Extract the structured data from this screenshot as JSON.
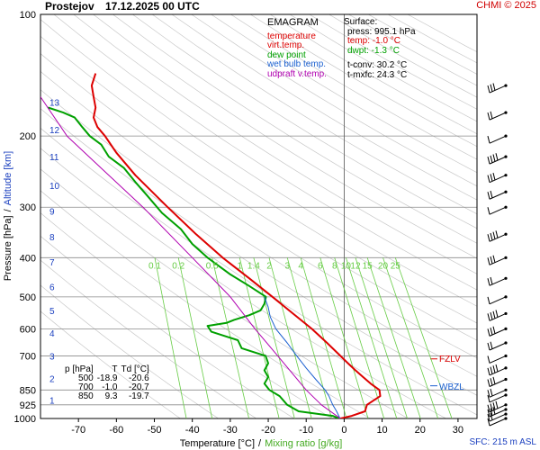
{
  "header": {
    "station": "Prostejov",
    "datetime": "17.12.2025 00 UTC",
    "copyright": "CHMI © 2025"
  },
  "legend": {
    "title": "EMAGRAM",
    "items": [
      {
        "label": "temperature",
        "color": "#dd0000"
      },
      {
        "label": "virt.temp.",
        "color": "#dd0000"
      },
      {
        "label": "dew point",
        "color": "#00a000"
      },
      {
        "label": "wet bulb temp.",
        "color": "#1a5fd0"
      },
      {
        "label": "udpraft v.temp.",
        "color": "#b000b0"
      }
    ]
  },
  "surface": {
    "title": "Surface:",
    "press": "press: 995.1 hPa",
    "temp": "temp: -1.0 °C",
    "dwpt": "dwpt: -1.3 °C",
    "tconv": "t-conv: 30.2 °C",
    "tmxfc": "t-mxfc: 24.3 °C"
  },
  "table": {
    "headers": [
      "p [hPa]",
      "T",
      "Td [°C]"
    ],
    "rows": [
      [
        "500",
        "-18.9",
        "-20.6"
      ],
      [
        "700",
        "-1.0",
        "-20.7"
      ],
      [
        "850",
        "9.3",
        "-19.7"
      ]
    ]
  },
  "levels": {
    "fzlv": "FZLV",
    "wbzl": "WBZL"
  },
  "sfc_text": "SFC: 215 m ASL",
  "chart_data": {
    "type": "line",
    "title": "Prostejov 17.12.2025 00 UTC",
    "xlabel": "Temperature [°C]",
    "xlabel_sep": "/",
    "xlabel2": "Mixing ratio [g/kg]",
    "ylabel": "Pressure [hPa]",
    "ylabel_sep": "/",
    "ylabel2": "Altitude [km]",
    "xlim": [
      -80,
      35
    ],
    "ylim": [
      1000,
      100
    ],
    "x_ticks": [
      -70,
      -60,
      -50,
      -40,
      -30,
      -20,
      -10,
      0,
      10,
      20,
      30
    ],
    "pressure_labels": [
      "100",
      "200",
      "300",
      "400",
      "500",
      "600",
      "700",
      "850",
      "925",
      "1000"
    ],
    "pressure_values": [
      100,
      200,
      300,
      400,
      500,
      600,
      700,
      850,
      925,
      1000
    ],
    "altitude_labels": [
      "1",
      "2",
      "3",
      "4",
      "5",
      "6",
      "7",
      "8",
      "9",
      "10",
      "11",
      "12",
      "13"
    ],
    "altitude_pressures": [
      900,
      795,
      700,
      615,
      540,
      472,
      410,
      355,
      307,
      265,
      225,
      193,
      165
    ],
    "mixing_ratio_labels": [
      "0.1",
      "0.2",
      "0.5",
      "1",
      "1.4",
      "2",
      "3",
      "4",
      "6",
      "8",
      "10",
      "12",
      "15",
      "20",
      "25"
    ],
    "mixing_ratio_values": [
      0.1,
      0.2,
      0.5,
      1,
      1.4,
      2,
      3,
      4,
      6,
      8,
      10,
      12,
      15,
      20,
      25
    ],
    "series": [
      {
        "name": "temperature",
        "color": "#dd0000",
        "points": [
          [
            1000,
            -1.0
          ],
          [
            985,
            2.0
          ],
          [
            960,
            5.5
          ],
          [
            925,
            6.0
          ],
          [
            880,
            9.5
          ],
          [
            850,
            9.3
          ],
          [
            820,
            7.0
          ],
          [
            790,
            5.0
          ],
          [
            760,
            3.0
          ],
          [
            730,
            1.0
          ],
          [
            700,
            -1.0
          ],
          [
            650,
            -4.5
          ],
          [
            600,
            -8.5
          ],
          [
            550,
            -13.5
          ],
          [
            500,
            -18.9
          ],
          [
            450,
            -25.0
          ],
          [
            400,
            -32.0
          ],
          [
            350,
            -39.0
          ],
          [
            300,
            -46.5
          ],
          [
            250,
            -55.0
          ],
          [
            220,
            -60.0
          ],
          [
            200,
            -63.0
          ],
          [
            190,
            -65.0
          ],
          [
            180,
            -66.0
          ],
          [
            170,
            -65.5
          ],
          [
            160,
            -66.0
          ],
          [
            150,
            -66.5
          ],
          [
            140,
            -65.5
          ]
        ]
      },
      {
        "name": "dew point",
        "color": "#00a000",
        "points": [
          [
            1000,
            -1.3
          ],
          [
            985,
            -3.0
          ],
          [
            960,
            -12.0
          ],
          [
            925,
            -15.0
          ],
          [
            880,
            -17.0
          ],
          [
            850,
            -19.7
          ],
          [
            820,
            -21.0
          ],
          [
            790,
            -20.0
          ],
          [
            760,
            -21.0
          ],
          [
            730,
            -20.0
          ],
          [
            700,
            -20.7
          ],
          [
            670,
            -27.0
          ],
          [
            640,
            -28.0
          ],
          [
            610,
            -35.0
          ],
          [
            590,
            -36.0
          ],
          [
            580,
            -31.0
          ],
          [
            570,
            -29.0
          ],
          [
            555,
            -25.0
          ],
          [
            540,
            -22.0
          ],
          [
            520,
            -21.0
          ],
          [
            500,
            -20.6
          ],
          [
            470,
            -25.0
          ],
          [
            440,
            -30.0
          ],
          [
            400,
            -36.0
          ],
          [
            370,
            -40.0
          ],
          [
            340,
            -43.0
          ],
          [
            310,
            -48.0
          ],
          [
            280,
            -52.0
          ],
          [
            260,
            -55.0
          ],
          [
            240,
            -58.0
          ],
          [
            225,
            -62.0
          ],
          [
            210,
            -64.0
          ],
          [
            200,
            -67.0
          ],
          [
            190,
            -69.0
          ],
          [
            180,
            -71.0
          ],
          [
            175,
            -74.0
          ],
          [
            170,
            -78.0
          ]
        ]
      },
      {
        "name": "wet bulb temp.",
        "color": "#1a5fd0",
        "points": [
          [
            1000,
            -1.1
          ],
          [
            960,
            -2.0
          ],
          [
            925,
            -3.0
          ],
          [
            880,
            -4.0
          ],
          [
            850,
            -5.0
          ],
          [
            800,
            -7.5
          ],
          [
            750,
            -10.0
          ],
          [
            700,
            -12.5
          ],
          [
            650,
            -15.0
          ],
          [
            600,
            -18.0
          ],
          [
            560,
            -19.5
          ],
          [
            530,
            -20.0
          ],
          [
            500,
            -21.0
          ]
        ]
      },
      {
        "name": "udpraft v.temp.",
        "color": "#b000b0",
        "points": [
          [
            1000,
            -1.0
          ],
          [
            925,
            -6.0
          ],
          [
            850,
            -10.0
          ],
          [
            700,
            -17.5
          ],
          [
            600,
            -23.5
          ],
          [
            500,
            -30.0
          ],
          [
            400,
            -40.0
          ],
          [
            300,
            -53.0
          ],
          [
            250,
            -62.0
          ],
          [
            200,
            -73.0
          ],
          [
            160,
            -80.0
          ]
        ]
      }
    ]
  }
}
